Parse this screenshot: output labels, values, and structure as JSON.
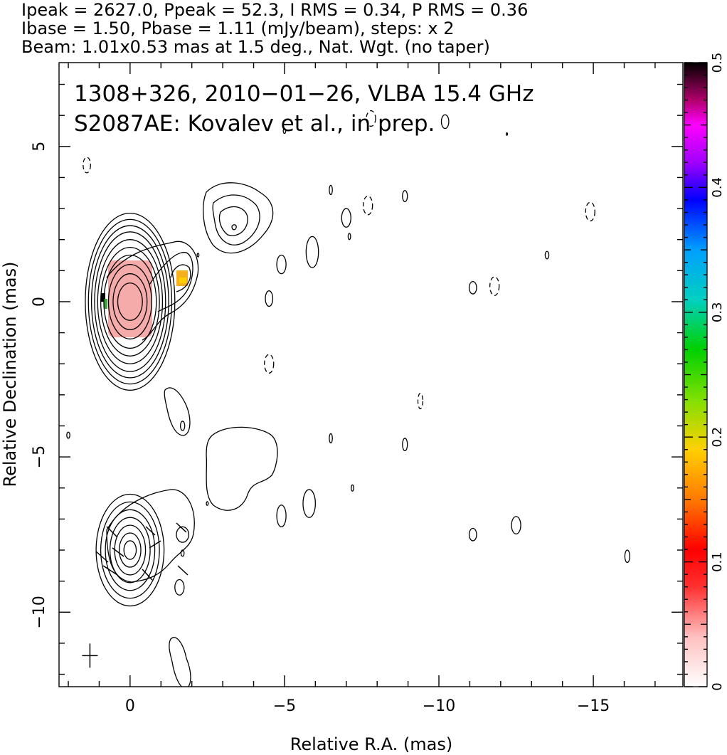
{
  "header": {
    "line1": "Ipeak = 2627.0, Ppeak = 52.3, I RMS = 0.34, P RMS = 0.36",
    "line2": "Ibase = 1.50, Pbase = 1.11 (mJy/beam), steps: x 2",
    "line3": "Beam: 1.01x0.53 mas at 1.5 deg., Nat. Wgt. (no taper)"
  },
  "annotation": {
    "line1": "1308+326, 2010−01−26, VLBA 15.4 GHz",
    "line2": "S2087AE: Kovalev et al., in prep."
  },
  "chart_data": {
    "type": "contour",
    "xlabel": "Relative R.A. (mas)",
    "ylabel": "Relative Declination (mas)",
    "xlim": [
      2.3,
      -17.9
    ],
    "ylim": [
      -12.4,
      7.7
    ],
    "x_ticks": [
      {
        "value": 0,
        "label": "0"
      },
      {
        "value": -5,
        "label": "−5"
      },
      {
        "value": -10,
        "label": "−10"
      },
      {
        "value": -15,
        "label": "−15"
      }
    ],
    "y_ticks": [
      {
        "value": 5,
        "label": "5"
      },
      {
        "value": 0,
        "label": "0"
      },
      {
        "value": -5,
        "label": "−5"
      },
      {
        "value": -10,
        "label": "−10"
      }
    ],
    "colorbar": {
      "range": [
        0,
        0.5
      ],
      "ticks": [
        {
          "value": 0,
          "label": "0"
        },
        {
          "value": 0.1,
          "label": "0.1"
        },
        {
          "value": 0.2,
          "label": "0.2"
        },
        {
          "value": 0.3,
          "label": "0.3"
        },
        {
          "value": 0.4,
          "label": "0.4"
        },
        {
          "value": 0.5,
          "label": "0.5"
        }
      ]
    },
    "core": {
      "x": 0.0,
      "y": 0.0,
      "rx": [
        0.4,
        0.55,
        0.7,
        0.85,
        0.95,
        1.05,
        1.15,
        1.25,
        1.35,
        1.45
      ],
      "ry": [
        0.6,
        0.9,
        1.2,
        1.5,
        1.75,
        2.0,
        2.25,
        2.45,
        2.65,
        2.85
      ]
    },
    "pol_core": {
      "x": 0.0,
      "y": -8.0,
      "rx": [
        0.2,
        0.35,
        0.5,
        0.65,
        0.8,
        0.95,
        1.1
      ],
      "ry": [
        0.3,
        0.55,
        0.8,
        1.05,
        1.3,
        1.55,
        1.8
      ]
    },
    "small_contours": [
      {
        "x": -4.5,
        "y": 0.1,
        "rx": 0.12,
        "ry": 0.25
      },
      {
        "x": -4.9,
        "y": 1.2,
        "rx": 0.15,
        "ry": 0.3
      },
      {
        "x": -5.9,
        "y": 1.6,
        "rx": 0.2,
        "ry": 0.5
      },
      {
        "x": -6.5,
        "y": 3.6,
        "rx": 0.05,
        "ry": 0.15
      },
      {
        "x": -7.0,
        "y": 2.7,
        "rx": 0.15,
        "ry": 0.3
      },
      {
        "x": -7.1,
        "y": 2.1,
        "rx": 0.04,
        "ry": 0.1
      },
      {
        "x": -8.9,
        "y": 3.4,
        "rx": 0.08,
        "ry": 0.18
      },
      {
        "x": -11.1,
        "y": 0.45,
        "rx": 0.12,
        "ry": 0.2
      },
      {
        "x": -13.5,
        "y": 1.5,
        "rx": 0.06,
        "ry": 0.12
      },
      {
        "x": -10.2,
        "y": 5.8,
        "rx": 0.12,
        "ry": 0.22
      },
      {
        "x": -5.0,
        "y": 5.5,
        "rx": 0.04,
        "ry": 0.08
      },
      {
        "x": -12.2,
        "y": 5.4,
        "rx": 0.02,
        "ry": 0.04
      },
      {
        "x": -2.2,
        "y": 1.5,
        "rx": 0.03,
        "ry": 0.06
      },
      {
        "x": 2.0,
        "y": -4.3,
        "rx": 0.05,
        "ry": 0.1
      },
      {
        "x": -6.5,
        "y": -4.4,
        "rx": 0.05,
        "ry": 0.15
      },
      {
        "x": -8.9,
        "y": -4.6,
        "rx": 0.08,
        "ry": 0.2
      },
      {
        "x": -7.2,
        "y": -6.0,
        "rx": 0.04,
        "ry": 0.1
      },
      {
        "x": -4.9,
        "y": -6.9,
        "rx": 0.15,
        "ry": 0.35
      },
      {
        "x": -5.8,
        "y": -6.5,
        "rx": 0.2,
        "ry": 0.45
      },
      {
        "x": -11.1,
        "y": -7.5,
        "rx": 0.12,
        "ry": 0.2
      },
      {
        "x": -12.5,
        "y": -7.2,
        "rx": 0.15,
        "ry": 0.28
      },
      {
        "x": -16.1,
        "y": -8.2,
        "rx": 0.08,
        "ry": 0.2
      },
      {
        "x": -1.7,
        "y": -7.5,
        "rx": 0.2,
        "ry": 0.25
      },
      {
        "x": -1.7,
        "y": -8.1,
        "rx": 0.05,
        "ry": 0.1
      },
      {
        "x": -1.6,
        "y": -9.2,
        "rx": 0.15,
        "ry": 0.25
      },
      {
        "x": -2.5,
        "y": -6.5,
        "rx": 0.03,
        "ry": 0.06
      },
      {
        "x": -1.7,
        "y": -4.0,
        "rx": 0.07,
        "ry": 0.15
      }
    ],
    "dashed_contours": [
      {
        "x": 1.4,
        "y": 4.4,
        "rx": 0.12,
        "ry": 0.25
      },
      {
        "x": -7.7,
        "y": 3.1,
        "rx": 0.15,
        "ry": 0.3
      },
      {
        "x": -11.8,
        "y": 0.5,
        "rx": 0.15,
        "ry": 0.3
      },
      {
        "x": -14.9,
        "y": 2.9,
        "rx": 0.15,
        "ry": 0.3
      },
      {
        "x": -4.5,
        "y": -2.0,
        "rx": 0.15,
        "ry": 0.3
      },
      {
        "x": -9.4,
        "y": -3.2,
        "rx": 0.08,
        "ry": 0.25
      },
      {
        "x": -7.8,
        "y": 5.9,
        "rx": 0.15,
        "ry": 0.25
      }
    ],
    "beam_marker": {
      "x": 1.3,
      "y": -11.4
    }
  }
}
